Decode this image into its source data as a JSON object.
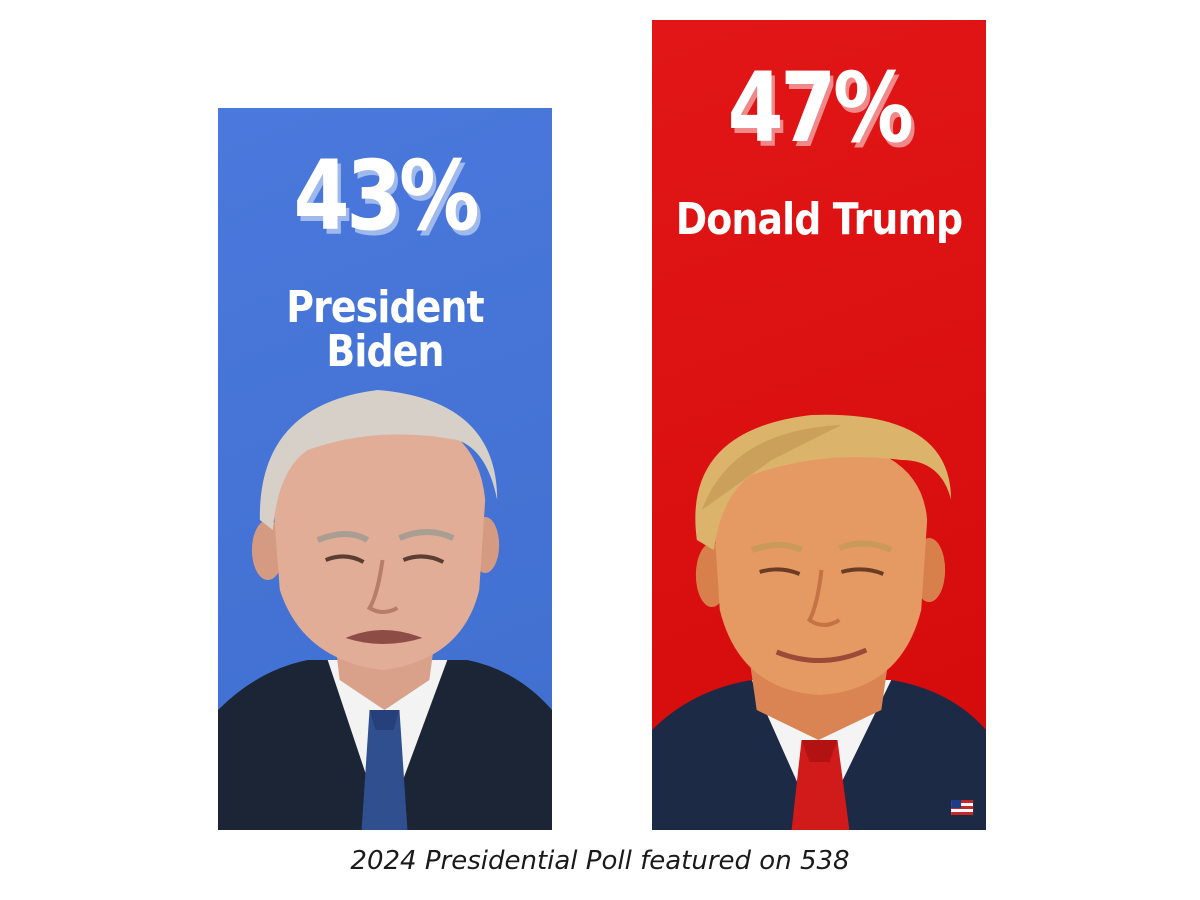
{
  "chart_data": {
    "type": "bar",
    "categories": [
      "President Biden",
      "Donald Trump"
    ],
    "values": [
      43,
      47
    ],
    "value_labels": [
      "43%",
      "47%"
    ],
    "unit": "%",
    "colors": [
      "#3f6fcf",
      "#d40a0a"
    ],
    "caption": "2024 Presidential Poll featured on 538",
    "portraits": [
      "biden-portrait",
      "trump-portrait"
    ]
  }
}
